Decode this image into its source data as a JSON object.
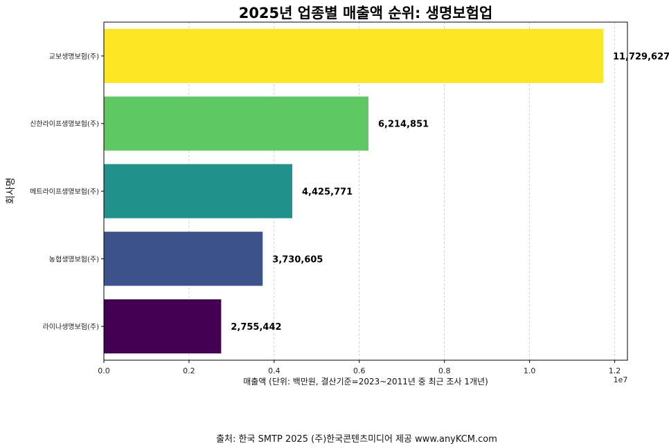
{
  "chart_data": {
    "type": "bar",
    "orientation": "horizontal",
    "title": "2025년 업종별 매출액 순위: 생명보험업",
    "categories": [
      "교보생명보험(주)",
      "신한라이프생명보험(주)",
      "메트라이프생명보험(주)",
      "농협생명보험(주)",
      "라이나생명보험(주)"
    ],
    "values": [
      11729627,
      6214851,
      4425771,
      3730605,
      2755442
    ],
    "value_labels": [
      "11,729,627",
      "6,214,851",
      "4,425,771",
      "3,730,605",
      "2,755,442"
    ],
    "colors": [
      "#fde725",
      "#5ec962",
      "#21918c",
      "#3b528b",
      "#440154"
    ],
    "xlabel": "매출액 (단위: 백만원, 결산기준=2023~2011년 중 최근 조사 1개년)",
    "ylabel": "회사명",
    "xlim": [
      0,
      12300000
    ],
    "xticks": [
      0,
      2000000,
      4000000,
      6000000,
      8000000,
      10000000,
      12000000
    ],
    "xtick_labels": [
      "0.0",
      "0.2",
      "0.4",
      "0.6",
      "0.8",
      "1.0",
      "1.2"
    ],
    "offset_label": "1e7",
    "grid": "x-dashed"
  },
  "footer": {
    "source": "출처: 한국 SMTP 2025  (주)한국콘텐츠미디어 제공  www.anyKCM.com"
  }
}
